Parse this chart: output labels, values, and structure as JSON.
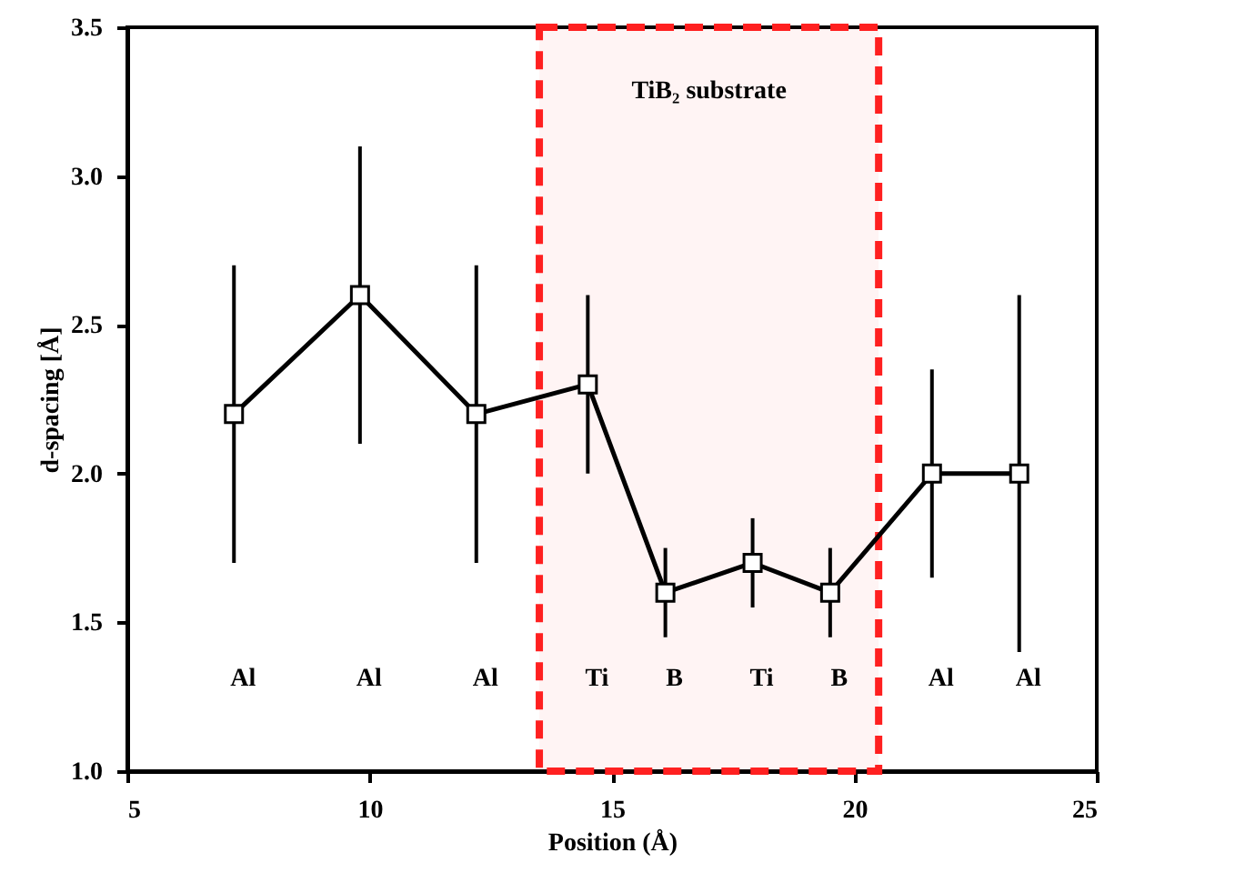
{
  "chart_data": {
    "type": "line",
    "xlabel": "Position (Å)",
    "ylabel": "d-spacing [Å]",
    "x": [
      7.2,
      9.8,
      12.2,
      14.5,
      16.1,
      17.9,
      19.5,
      21.6,
      23.4
    ],
    "series": [
      {
        "color": "#000000",
        "values": [
          2.2,
          2.6,
          2.2,
          2.3,
          1.6,
          1.7,
          1.6,
          2.0,
          2.0
        ],
        "errors": [
          [
            1.7,
            2.7
          ],
          [
            2.1,
            3.1
          ],
          [
            1.7,
            2.7
          ],
          [
            2.0,
            2.6
          ],
          [
            1.45,
            1.75
          ],
          [
            1.55,
            1.85
          ],
          [
            1.45,
            1.75
          ],
          [
            1.65,
            2.35
          ],
          [
            1.4,
            2.6
          ]
        ]
      }
    ],
    "marker": "square",
    "line_style": "solid",
    "xlim": [
      5,
      25
    ],
    "xticks": [
      5,
      10,
      15,
      20,
      25
    ],
    "ylim": [
      1.0,
      3.5
    ],
    "yticks": [
      {
        "value": 1.0,
        "label": "1.0"
      },
      {
        "value": 1.5,
        "label": "1.5"
      },
      {
        "value": 2.0,
        "label": "2.0"
      },
      {
        "value": 2.5,
        "label": "2.5"
      },
      {
        "value": 3.0,
        "label": "3.0"
      },
      {
        "value": 3.5,
        "label": "3.5"
      }
    ],
    "bands": [
      {
        "axis": "x",
        "from": 13.5,
        "to": 20.5,
        "label": "TiB₂ substrate",
        "color": "#ff2020"
      }
    ],
    "annotations": [
      "Al",
      "Al",
      "Al",
      "Ti",
      "B",
      "Ti",
      "B",
      "Al",
      "Al"
    ]
  }
}
